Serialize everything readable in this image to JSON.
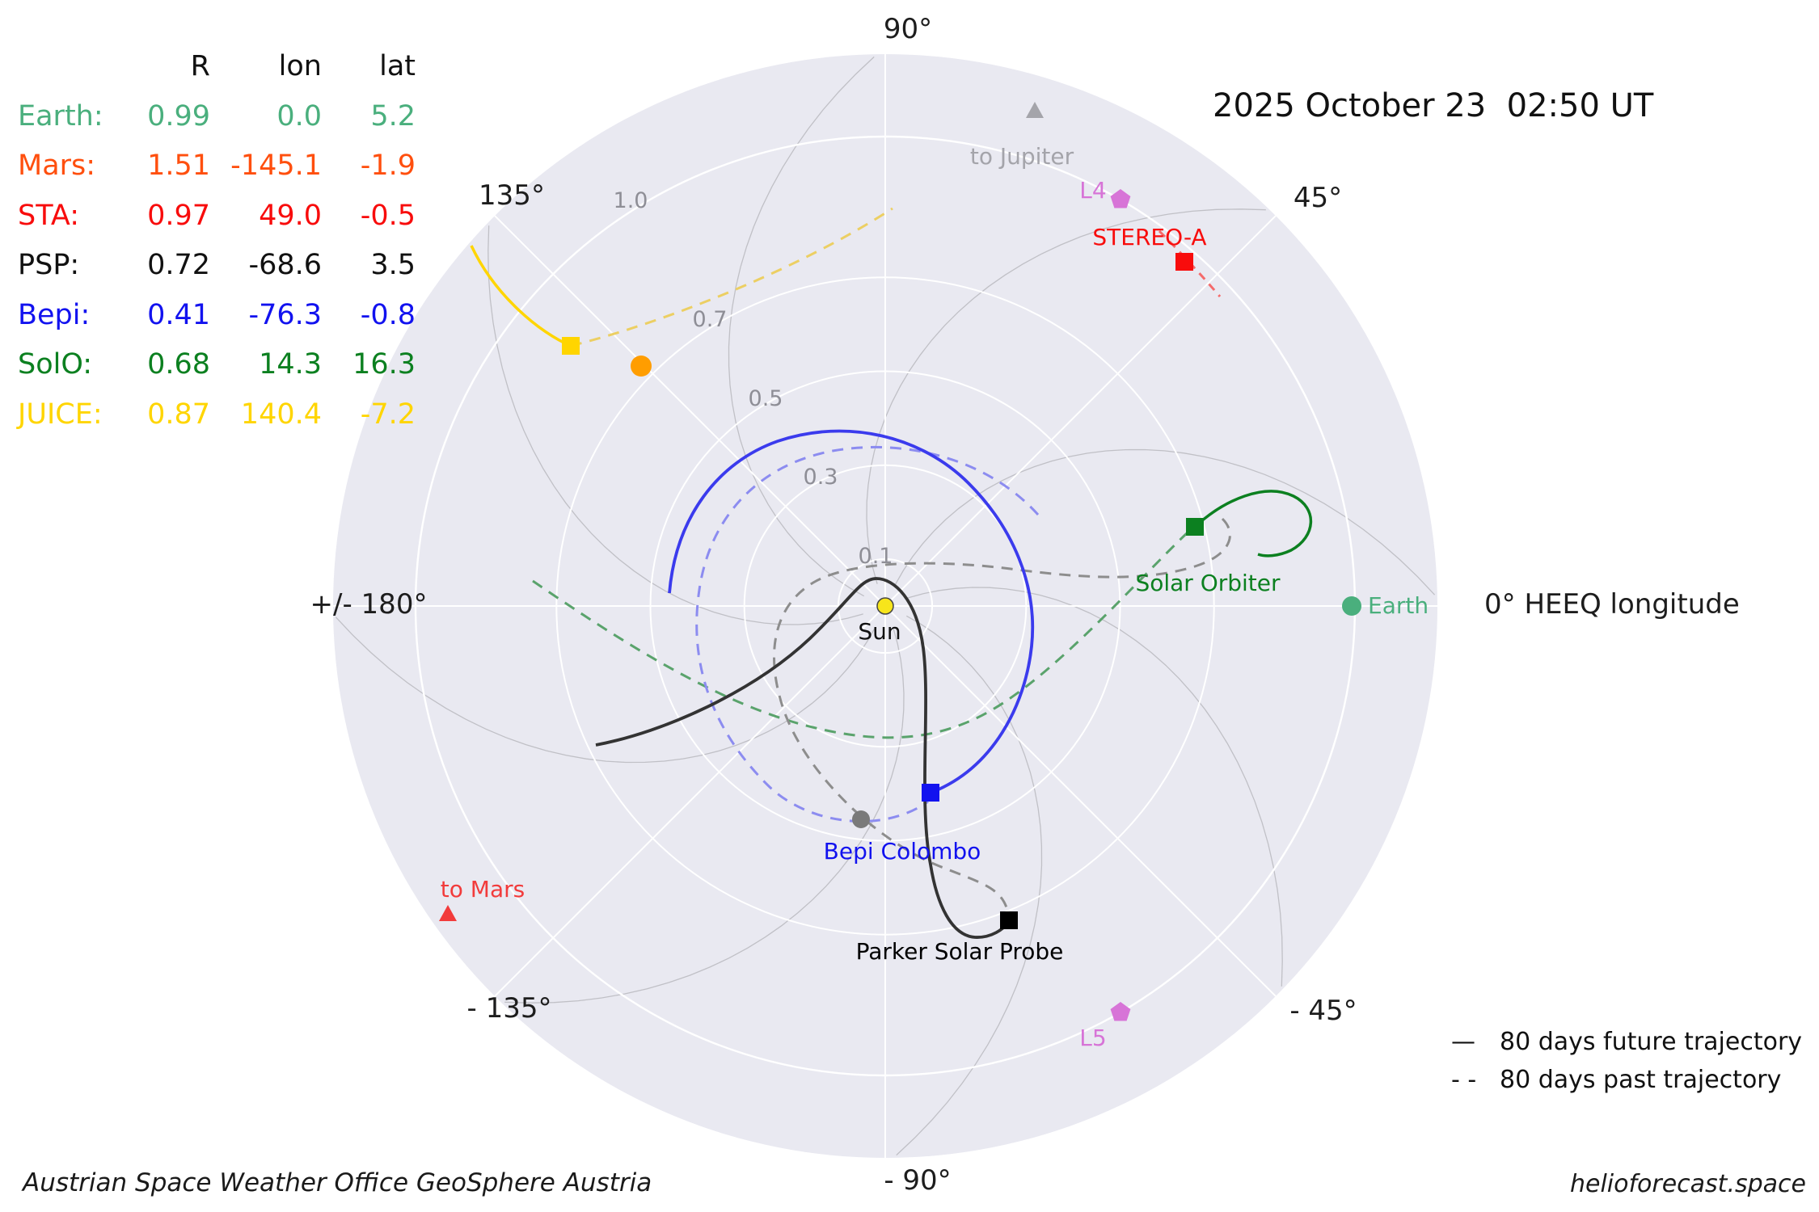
{
  "title": "2025 October 23  02:50 UT",
  "table": {
    "headers": [
      "R",
      "lon",
      "lat"
    ],
    "rows": [
      {
        "label": "Earth:",
        "R": "0.99",
        "lon": "0.0",
        "lat": "5.2",
        "color": "#4aaf7d"
      },
      {
        "label": "Mars:",
        "R": "1.51",
        "lon": "-145.1",
        "lat": "-1.9",
        "color": "#ff4f0e"
      },
      {
        "label": "STA:",
        "R": "0.97",
        "lon": "49.0",
        "lat": "-0.5",
        "color": "#f80c0c"
      },
      {
        "label": "PSP:",
        "R": "0.72",
        "lon": "-68.6",
        "lat": "3.5",
        "color": "#111111"
      },
      {
        "label": "Bepi:",
        "R": "0.41",
        "lon": "-76.3",
        "lat": "-0.8",
        "color": "#1212ef"
      },
      {
        "label": "SolO:",
        "R": "0.68",
        "lon": "14.3",
        "lat": "16.3",
        "color": "#0c8020"
      },
      {
        "label": "JUICE:",
        "R": "0.87",
        "lon": "140.4",
        "lat": "-7.2",
        "color": "#ffd500"
      }
    ]
  },
  "plot": {
    "angle_labels": {
      "p90": "90°",
      "p45": "45°",
      "p135": "135°",
      "p180": "+/- 180°",
      "m45": "- 45°",
      "m90": "- 90°",
      "m135": "- 135°",
      "p0": "0° HEEQ longitude"
    },
    "radius_labels": {
      "r01": "0.1",
      "r03": "0.3",
      "r05": "0.5",
      "r07": "0.7",
      "r10": "1.0"
    },
    "markers": {
      "sun": {
        "label": "Sun",
        "color": "#f7e51b"
      },
      "earth": {
        "label": "Earth",
        "color": "#4aaf7d"
      },
      "stereo_a": {
        "label": "STEREO-A",
        "color": "#f80c0c"
      },
      "l4": {
        "label": "L4",
        "color": "#d774d7"
      },
      "l5": {
        "label": "L5",
        "color": "#d774d7"
      },
      "solar_orbiter": {
        "label": "Solar Orbiter",
        "color": "#0c8020"
      },
      "bepi_colombo": {
        "label": "Bepi Colombo",
        "color": "#1212ef"
      },
      "parker_solar_probe": {
        "label": "Parker Solar Probe",
        "color": "#000000"
      },
      "juice": {
        "color": "#ffd500"
      },
      "venus_dot": {
        "color": "#ff9d00"
      },
      "mercury_dot": {
        "color": "#7a7a7a"
      },
      "to_jupiter": {
        "label": "to Jupiter",
        "color": "#a4a4aa"
      },
      "to_mars": {
        "label": "to Mars",
        "color": "#f23b3b"
      }
    },
    "colors": {
      "plot_bg": "#e9e9f1",
      "grid_white": "#ffffff",
      "spiral_gray": "#c0c0c6",
      "tick_gray": "#8e8e96",
      "bepi_past": "#8c8cf0",
      "psp_past": "#8d8d8d",
      "solo_past": "#5aa36c",
      "juice_past": "#eccf63",
      "sta_past": "#f56a6a",
      "bepi_future": "#3b3bed",
      "psp_future": "#333333"
    }
  },
  "legend": {
    "future_symbol": "—",
    "future_label": "80 days future trajectory",
    "past_symbol": "- -",
    "past_label": "80 days past trajectory"
  },
  "footer": {
    "left": "Austrian Space Weather Office   GeoSphere Austria",
    "right": "helioforecast.space"
  },
  "chart_data": {
    "type": "scatter",
    "projection": "polar",
    "title": "2025 October 23  02:50 UT",
    "frame": "HEEQ longitude in degrees, radius in AU",
    "radial_ticks": [
      0.1,
      0.3,
      0.5,
      0.7,
      1.0
    ],
    "radial_max": 1.175,
    "angular_ticks_deg": [
      0,
      45,
      90,
      135,
      180,
      -135,
      -90,
      -45
    ],
    "grid": "white polar grid with gray Parker-spiral field lines",
    "legend_position": "lower right",
    "bodies": [
      {
        "name": "Earth",
        "R_au": 0.99,
        "lon_deg": 0.0,
        "lat_deg": 5.2,
        "marker": "circle",
        "color": "#4aaf7d"
      },
      {
        "name": "Mars",
        "R_au": 1.51,
        "lon_deg": -145.1,
        "lat_deg": -1.9,
        "marker": "off-plot direction triangle 'to Mars'",
        "color": "#ff4f0e"
      },
      {
        "name": "STEREO-A (STA)",
        "R_au": 0.97,
        "lon_deg": 49.0,
        "lat_deg": -0.5,
        "marker": "square",
        "color": "#f80c0c"
      },
      {
        "name": "Parker Solar Probe (PSP)",
        "R_au": 0.72,
        "lon_deg": -68.6,
        "lat_deg": 3.5,
        "marker": "square",
        "color": "#000000"
      },
      {
        "name": "BepiColombo (Bepi)",
        "R_au": 0.41,
        "lon_deg": -76.3,
        "lat_deg": -0.8,
        "marker": "square",
        "color": "#1212ef"
      },
      {
        "name": "Solar Orbiter (SolO)",
        "R_au": 0.68,
        "lon_deg": 14.3,
        "lat_deg": 16.3,
        "marker": "square",
        "color": "#0c8020"
      },
      {
        "name": "JUICE",
        "R_au": 0.87,
        "lon_deg": 140.4,
        "lat_deg": -7.2,
        "marker": "square",
        "color": "#ffd500"
      },
      {
        "name": "Sun",
        "R_au": 0.0,
        "lon_deg": 0.0,
        "marker": "circle",
        "color": "#f7e51b"
      },
      {
        "name": "L4",
        "R_au": 1.0,
        "lon_deg": 60.0,
        "marker": "pentagon",
        "color": "#d774d7"
      },
      {
        "name": "L5",
        "R_au": 1.0,
        "lon_deg": -60.0,
        "marker": "pentagon",
        "color": "#d774d7"
      },
      {
        "name": "unlabeled orange dot (Venus)",
        "R_au": 0.73,
        "lon_deg": 135.0,
        "marker": "circle",
        "color": "#ff9d00"
      },
      {
        "name": "unlabeled gray dot (Mercury)",
        "R_au": 0.46,
        "lon_deg": -93.0,
        "marker": "circle",
        "color": "#7a7a7a"
      }
    ],
    "direction_markers": [
      {
        "label": "to Jupiter",
        "lon_deg": 73,
        "color": "#a4a4aa"
      },
      {
        "label": "to Mars",
        "lon_deg": -145,
        "color": "#f23b3b"
      }
    ],
    "trajectory_encoding": "solid line = 80 days future trajectory, dashed line = 80 days past trajectory (shown for PSP, BepiColombo, Solar Orbiter, JUICE, STEREO-A)"
  }
}
